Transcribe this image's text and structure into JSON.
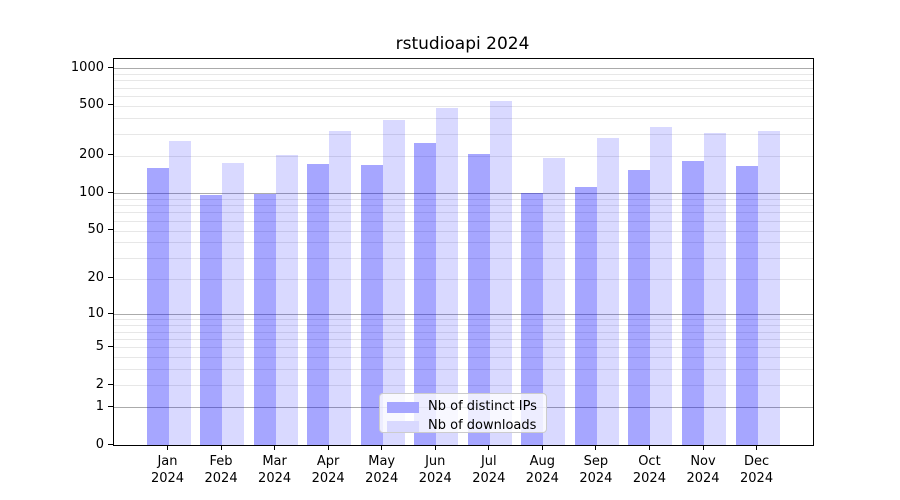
{
  "title": "rstudioapi 2024",
  "chart_data": {
    "type": "bar",
    "title": "rstudioapi 2024",
    "categories": [
      "Jan 2024",
      "Feb 2024",
      "Mar 2024",
      "Apr 2024",
      "May 2024",
      "Jun 2024",
      "Jul 2024",
      "Aug 2024",
      "Sep 2024",
      "Oct 2024",
      "Nov 2024",
      "Dec 2024"
    ],
    "series": [
      {
        "name": "Nb of distinct IPs",
        "fill": "rgba(0,0,255,0.35)",
        "swatch": "#a6a6ff",
        "values": [
          160,
          96,
          98,
          172,
          168,
          253,
          205,
          100,
          113,
          154,
          180,
          165
        ]
      },
      {
        "name": "Nb of downloads",
        "fill": "rgba(0,0,255,0.15)",
        "swatch": "#d9d9ff",
        "values": [
          263,
          176,
          202,
          315,
          386,
          485,
          550,
          193,
          276,
          342,
          303,
          315
        ]
      }
    ],
    "y_scale": "log10(1+x)",
    "ylim": [
      0,
      1180
    ],
    "y_ticks": [
      0,
      1,
      2,
      5,
      10,
      20,
      50,
      100,
      200,
      500,
      1000
    ],
    "grid": true,
    "grid_major_values": [
      1,
      10,
      100,
      1000
    ],
    "grid_minor_values": [
      2,
      3,
      4,
      5,
      6,
      7,
      8,
      9,
      20,
      30,
      40,
      50,
      60,
      70,
      80,
      90,
      200,
      300,
      400,
      500,
      600,
      700,
      800,
      900
    ],
    "legend_position": "bottom-center",
    "xlabel": "",
    "ylabel": ""
  },
  "colors": {
    "grid_minor": "#e7e7e7",
    "grid_major": "#ababab",
    "spine": "#000000",
    "text": "#000000",
    "legend_border": "#cccccc",
    "legend_bg": "rgba(255,255,255,0.8)"
  }
}
